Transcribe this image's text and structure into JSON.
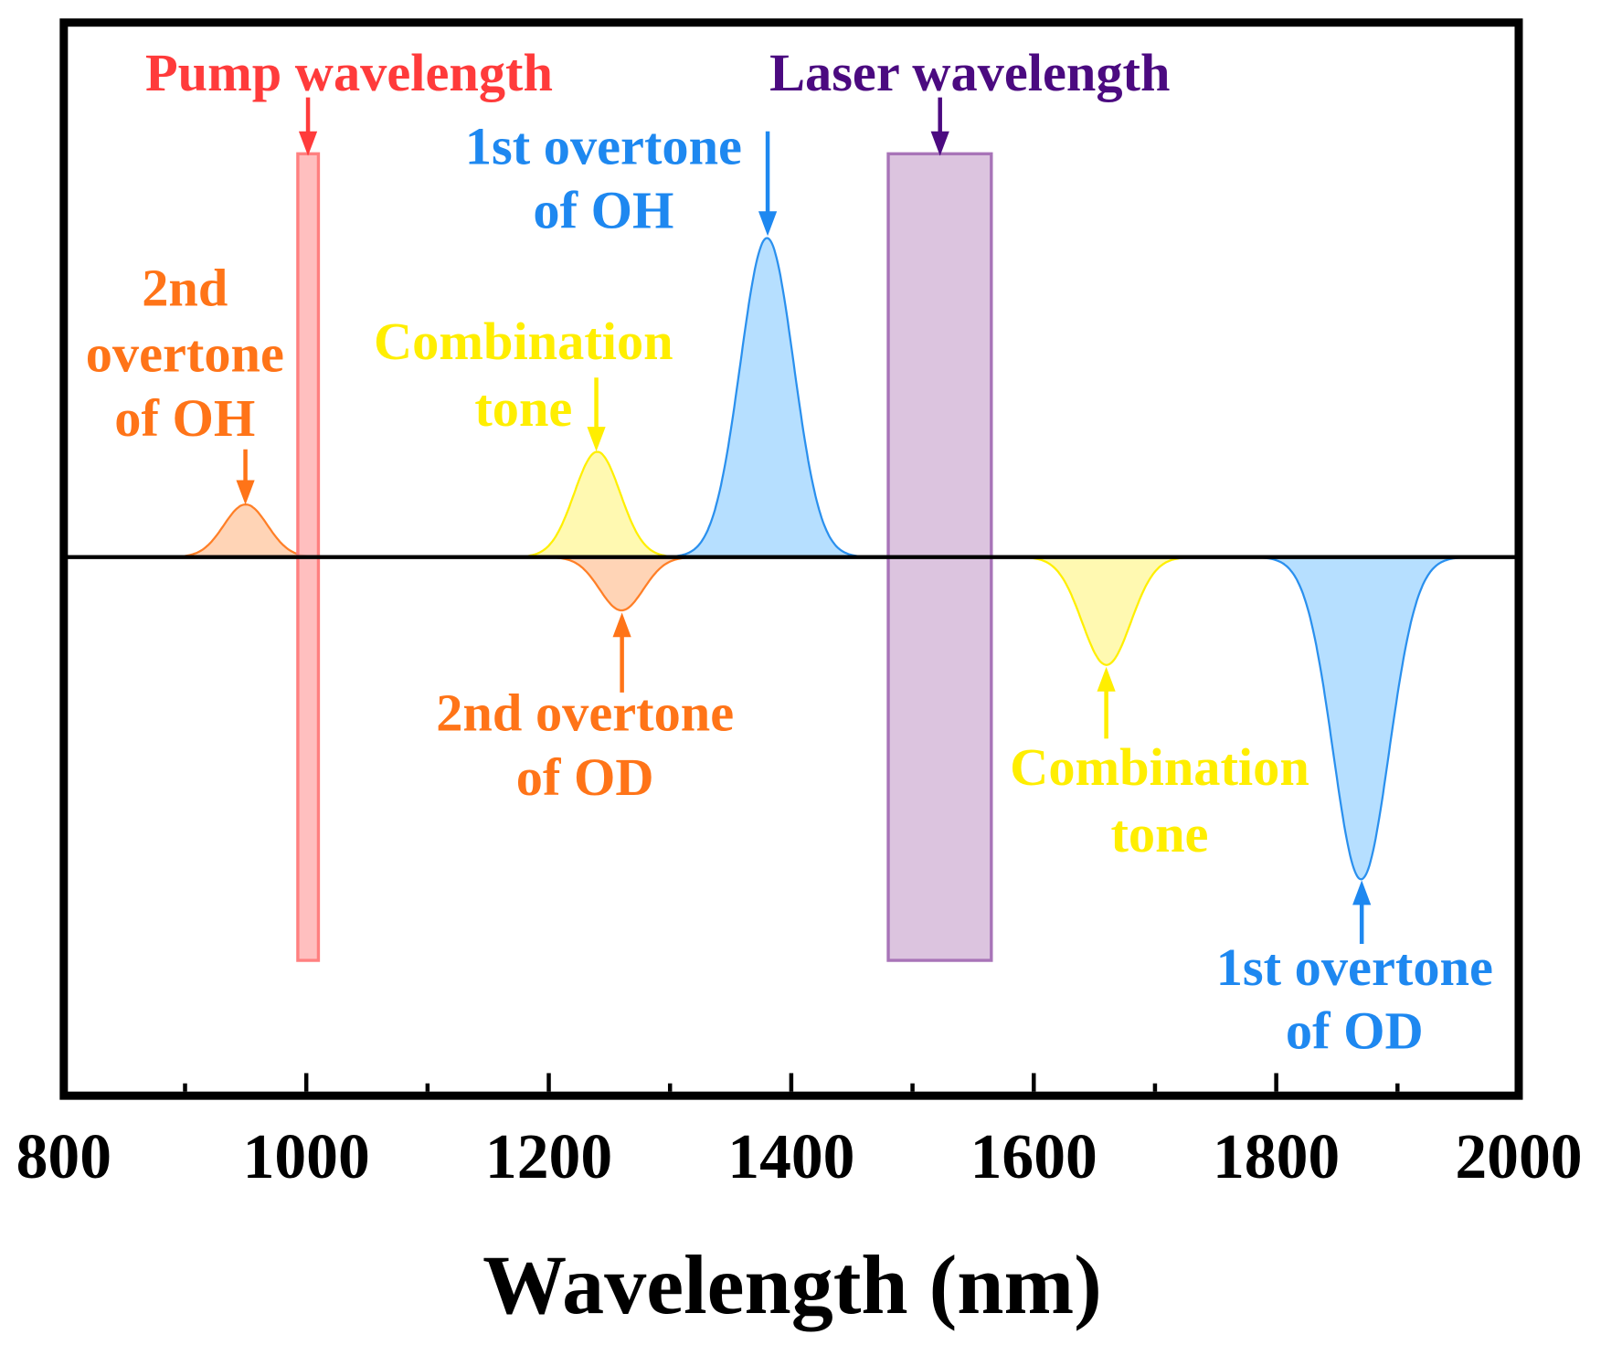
{
  "chart_data": {
    "type": "area",
    "title": "",
    "xlabel": "Wavelength (nm)",
    "ylabel": "",
    "xlim": [
      800,
      2000
    ],
    "ylim": [
      -1.69,
      1.675
    ],
    "x_ticks": [
      "800",
      "1000",
      "1200",
      "1400",
      "1600",
      "1800",
      "2000"
    ],
    "x_tick_values": [
      800,
      1000,
      1200,
      1400,
      1600,
      1800,
      2000
    ],
    "minor_tick_values": [
      900,
      1100,
      1300,
      1500,
      1700,
      1900
    ],
    "grid": false,
    "peaks": [
      {
        "name": "2nd overtone of OH",
        "center": 950,
        "amplitude": 0.165,
        "sigma": 18,
        "color": "#ff7f27",
        "fill": "#ffcfae"
      },
      {
        "name": "Combination tone (OH)",
        "center": 1240,
        "amplitude": 0.33,
        "sigma": 19,
        "color": "#ffef00",
        "fill": "#fff8a8"
      },
      {
        "name": "1st overtone of OH",
        "center": 1380,
        "amplitude": 1.0,
        "sigma": 22,
        "color": "#2a90ee",
        "fill": "#aedcff"
      },
      {
        "name": "2nd overtone of OD",
        "center": 1260,
        "amplitude": -0.167,
        "sigma": 18,
        "color": "#ff7f27",
        "fill": "#ffcfae"
      },
      {
        "name": "Combination tone (OD)",
        "center": 1660,
        "amplitude": -0.338,
        "sigma": 20,
        "color": "#ffef00",
        "fill": "#fff8a8"
      },
      {
        "name": "1st overtone of OD",
        "center": 1870,
        "amplitude": -1.01,
        "sigma": 23,
        "color": "#2a90ee",
        "fill": "#aedcff"
      }
    ],
    "bands": [
      {
        "name": "Pump wavelength",
        "x0": 993,
        "x1": 1010,
        "y0": -1.264,
        "y1": 1.264,
        "stroke": "#ff8080",
        "fill": "#ffb8b8"
      },
      {
        "name": "Laser wavelength",
        "x0": 1480,
        "x1": 1565,
        "y0": -1.264,
        "y1": 1.264,
        "stroke": "#a874b8",
        "fill": "#d8bedc"
      }
    ]
  },
  "annotations": {
    "pump": {
      "lines": [
        "Pump wavelength"
      ],
      "color": "#ff3b3b"
    },
    "laser": {
      "lines": [
        "Laser wavelength"
      ],
      "color": "#4b0a80"
    },
    "oh1": {
      "lines": [
        "1st overtone",
        "of OH"
      ],
      "color": "#1e88f0"
    },
    "oh2": {
      "lines": [
        "2nd",
        "overtone",
        "of OH"
      ],
      "color": "#ff7418"
    },
    "comb_up": {
      "lines": [
        "Combination",
        "tone"
      ],
      "color": "#ffee00"
    },
    "od2": {
      "lines": [
        "2nd overtone",
        "of OD"
      ],
      "color": "#ff7418"
    },
    "comb_down": {
      "lines": [
        "Combination",
        "tone"
      ],
      "color": "#ffee00"
    },
    "od1": {
      "lines": [
        "1st overtone",
        "of OD"
      ],
      "color": "#1e88f0"
    }
  }
}
